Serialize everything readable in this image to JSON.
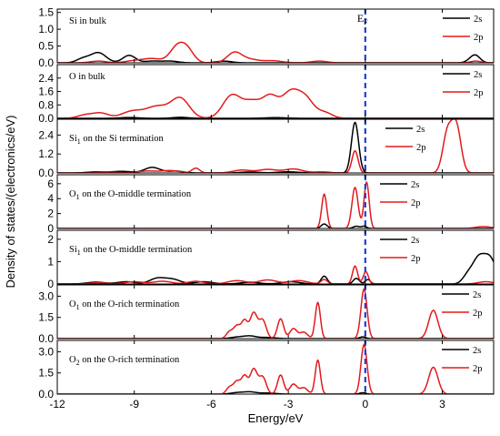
{
  "chart_data": {
    "type": "line",
    "xlabel": "Energy/eV",
    "ylabel": "Density of states/(electronics/eV)",
    "xlim": [
      -12,
      5
    ],
    "xticks": [
      -12,
      -9,
      -6,
      -3,
      0,
      3
    ],
    "fermi_label": "E",
    "fermi_subscript": "F",
    "fermi_energy": 0,
    "fermi_color": "#1f3fd0",
    "series_colors": {
      "2s": "#000000",
      "2p": "#e31a1c"
    },
    "legend_position": "top-right",
    "panels": [
      {
        "label": "Si in bulk",
        "ylim": [
          0,
          1.6
        ],
        "yticks": [
          "0.0",
          "0.5",
          "1.0",
          "1.5"
        ],
        "yticks_values": [
          0,
          0.5,
          1.0,
          1.5
        ],
        "legend": [
          "2s",
          "2p"
        ],
        "series": [
          {
            "name": "2s",
            "peaks": [
              [
                -11.0,
                0.12,
                0.25
              ],
              [
                -10.4,
                0.3,
                0.3
              ],
              [
                -9.2,
                0.22,
                0.25
              ],
              [
                -8.3,
                0.05,
                0.3
              ],
              [
                -7.6,
                0.05,
                0.3
              ],
              [
                -5.5,
                0.05,
                0.3
              ],
              [
                4.1,
                0.06,
                0.18
              ],
              [
                4.3,
                0.2,
                0.18
              ]
            ]
          },
          {
            "name": "2p",
            "peaks": [
              [
                -10.4,
                0.05,
                0.3
              ],
              [
                -9.0,
                0.06,
                0.35
              ],
              [
                -8.3,
                0.12,
                0.35
              ],
              [
                -7.3,
                0.5,
                0.3
              ],
              [
                -6.9,
                0.28,
                0.25
              ],
              [
                -5.1,
                0.3,
                0.28
              ],
              [
                -4.5,
                0.1,
                0.35
              ],
              [
                -3.6,
                0.06,
                0.35
              ],
              [
                -1.8,
                0.05,
                0.3
              ],
              [
                4.3,
                0.05,
                0.2
              ]
            ]
          }
        ]
      },
      {
        "label": "O in bulk",
        "ylim": [
          0,
          3.2
        ],
        "yticks": [
          "0.0",
          "0.8",
          "1.6",
          "2.4"
        ],
        "yticks_values": [
          0,
          0.8,
          1.6,
          2.4
        ],
        "legend": [
          "2s",
          "2p"
        ],
        "series": [
          {
            "name": "2s",
            "peaks": [
              [
                -9.2,
                0.05,
                0.35
              ],
              [
                -7.2,
                0.06,
                0.3
              ],
              [
                -3.5,
                0.04,
                0.4
              ]
            ]
          },
          {
            "name": "2p",
            "peaks": [
              [
                -10.9,
                0.2,
                0.3
              ],
              [
                -10.3,
                0.3,
                0.3
              ],
              [
                -9.1,
                0.4,
                0.4
              ],
              [
                -8.1,
                0.7,
                0.45
              ],
              [
                -7.2,
                1.15,
                0.35
              ],
              [
                -5.2,
                1.35,
                0.35
              ],
              [
                -4.4,
                0.95,
                0.35
              ],
              [
                -3.7,
                1.2,
                0.3
              ],
              [
                -2.9,
                1.55,
                0.35
              ],
              [
                -2.3,
                1.0,
                0.3
              ],
              [
                -1.6,
                0.35,
                0.3
              ]
            ]
          }
        ]
      },
      {
        "label": "Si on the Si termination",
        "label_main": "Si",
        "label_sub": "1",
        "label_rest": " on the Si termination",
        "ylim": [
          0,
          3.4
        ],
        "yticks": [
          "0.0",
          "1.2",
          "2.4"
        ],
        "yticks_values": [
          0,
          1.2,
          2.4
        ],
        "legend": [
          "2s",
          "2p"
        ],
        "legend_offset": "inner",
        "series": [
          {
            "name": "2s",
            "peaks": [
              [
                -10.5,
                0.06,
                0.35
              ],
              [
                -9.5,
                0.1,
                0.4
              ],
              [
                -8.3,
                0.35,
                0.3
              ],
              [
                -7.4,
                0.12,
                0.3
              ],
              [
                -4.5,
                0.06,
                0.35
              ],
              [
                -3.0,
                0.07,
                0.4
              ],
              [
                -1.7,
                0.06,
                0.3
              ],
              [
                -0.4,
                3.2,
                0.14
              ]
            ]
          },
          {
            "name": "2p",
            "peaks": [
              [
                -10.0,
                0.05,
                0.35
              ],
              [
                -8.5,
                0.12,
                0.35
              ],
              [
                -7.6,
                0.15,
                0.35
              ],
              [
                -6.6,
                0.3,
                0.15
              ],
              [
                -4.8,
                0.18,
                0.35
              ],
              [
                -3.8,
                0.22,
                0.35
              ],
              [
                -2.8,
                0.25,
                0.35
              ],
              [
                -1.8,
                0.05,
                0.3
              ],
              [
                -0.4,
                1.4,
                0.12
              ],
              [
                3.2,
                2.5,
                0.18
              ],
              [
                3.55,
                2.9,
                0.18
              ]
            ]
          }
        ]
      },
      {
        "label": "O on the O-middle termination",
        "label_main": "O",
        "label_sub": "1",
        "label_rest": " on the O-middle termination",
        "ylim": [
          0,
          7.2
        ],
        "yticks": [
          "0",
          "2",
          "4",
          "6"
        ],
        "yticks_values": [
          0,
          2,
          4,
          6
        ],
        "legend": [
          "2s",
          "2p"
        ],
        "legend_offset": "inner",
        "series": [
          {
            "name": "2s",
            "peaks": [
              [
                -1.6,
                0.6,
                0.12
              ],
              [
                -0.35,
                0.3,
                0.12
              ],
              [
                -0.05,
                0.3,
                0.1
              ]
            ]
          },
          {
            "name": "2p",
            "peaks": [
              [
                -1.6,
                4.6,
                0.1
              ],
              [
                -0.4,
                5.5,
                0.12
              ],
              [
                0.05,
                6.2,
                0.1
              ],
              [
                4.6,
                0.25,
                0.3
              ]
            ]
          }
        ]
      },
      {
        "label": "Si on the O-middle termination",
        "label_main": "Si",
        "label_sub": "1",
        "label_rest": " on the O-middle termination",
        "ylim": [
          0,
          2.4
        ],
        "yticks": [
          "0",
          "1",
          "2"
        ],
        "yticks_values": [
          0,
          1,
          2
        ],
        "legend": [
          "2s",
          "2p"
        ],
        "legend_offset": "inner",
        "series": [
          {
            "name": "2s",
            "peaks": [
              [
                -10.5,
                0.08,
                0.35
              ],
              [
                -9.3,
                0.1,
                0.35
              ],
              [
                -8.1,
                0.25,
                0.3
              ],
              [
                -7.5,
                0.2,
                0.3
              ],
              [
                -6.3,
                0.1,
                0.35
              ],
              [
                -4.5,
                0.08,
                0.35
              ],
              [
                -2.9,
                0.1,
                0.35
              ],
              [
                -1.6,
                0.35,
                0.12
              ],
              [
                -0.35,
                0.25,
                0.12
              ],
              [
                0.1,
                0.2,
                0.1
              ],
              [
                4.0,
                0.4,
                0.2
              ],
              [
                4.4,
                1.0,
                0.22
              ],
              [
                4.85,
                1.15,
                0.25
              ]
            ]
          },
          {
            "name": "2p",
            "peaks": [
              [
                -10.4,
                0.05,
                0.35
              ],
              [
                -9.0,
                0.1,
                0.35
              ],
              [
                -7.9,
                0.12,
                0.35
              ],
              [
                -6.6,
                0.12,
                0.3
              ],
              [
                -5.0,
                0.15,
                0.35
              ],
              [
                -3.8,
                0.18,
                0.35
              ],
              [
                -2.6,
                0.15,
                0.35
              ],
              [
                -1.6,
                0.2,
                0.12
              ],
              [
                -0.4,
                0.8,
                0.1
              ],
              [
                0.02,
                0.55,
                0.1
              ],
              [
                4.7,
                0.1,
                0.3
              ]
            ]
          }
        ]
      },
      {
        "label": "O on the O-rich termination",
        "label_main": "O",
        "label_sub": "1",
        "label_rest": " on the O-rich termination",
        "ylim": [
          0,
          3.8
        ],
        "yticks": [
          "0.0",
          "1.5",
          "3.0"
        ],
        "yticks_values": [
          0,
          1.5,
          3.0
        ],
        "legend": [
          "2s",
          "2p"
        ],
        "legend_offset": "inner",
        "series": [
          {
            "name": "2s",
            "peaks": [
              [
                -5.0,
                0.1,
                0.25
              ],
              [
                -4.5,
                0.18,
                0.25
              ],
              [
                -3.8,
                0.08,
                0.3
              ],
              [
                -0.1,
                0.12,
                0.12
              ]
            ]
          },
          {
            "name": "2p",
            "peaks": [
              [
                -5.3,
                0.45,
                0.12
              ],
              [
                -5.0,
                0.9,
                0.14
              ],
              [
                -4.7,
                1.2,
                0.12
              ],
              [
                -4.35,
                1.8,
                0.14
              ],
              [
                -4.0,
                1.3,
                0.14
              ],
              [
                -3.3,
                1.4,
                0.12
              ],
              [
                -2.8,
                0.7,
                0.14
              ],
              [
                -2.4,
                0.45,
                0.15
              ],
              [
                -1.85,
                2.55,
                0.1
              ],
              [
                -0.05,
                3.5,
                0.12
              ],
              [
                2.65,
                2.0,
                0.18
              ]
            ]
          }
        ]
      },
      {
        "label": "O on the O-rich termination",
        "label_main": "O",
        "label_sub": "2",
        "label_rest": " on the O-rich termination",
        "ylim": [
          0,
          3.8
        ],
        "yticks": [
          "0.0",
          "1.5",
          "3.0"
        ],
        "yticks_values": [
          0,
          1.5,
          3.0
        ],
        "legend": [
          "2s",
          "2p"
        ],
        "legend_offset": "inner",
        "series": [
          {
            "name": "2s",
            "peaks": [
              [
                -5.0,
                0.1,
                0.25
              ],
              [
                -4.5,
                0.15,
                0.25
              ],
              [
                -3.8,
                0.08,
                0.3
              ],
              [
                -0.1,
                0.1,
                0.12
              ]
            ]
          },
          {
            "name": "2p",
            "peaks": [
              [
                -5.3,
                0.45,
                0.12
              ],
              [
                -5.0,
                0.9,
                0.14
              ],
              [
                -4.7,
                1.2,
                0.12
              ],
              [
                -4.35,
                1.75,
                0.14
              ],
              [
                -4.0,
                1.2,
                0.14
              ],
              [
                -3.3,
                1.35,
                0.12
              ],
              [
                -2.8,
                0.7,
                0.14
              ],
              [
                -2.4,
                0.45,
                0.15
              ],
              [
                -1.85,
                2.4,
                0.1
              ],
              [
                -0.05,
                3.5,
                0.12
              ],
              [
                2.65,
                1.9,
                0.18
              ]
            ]
          }
        ]
      }
    ]
  }
}
